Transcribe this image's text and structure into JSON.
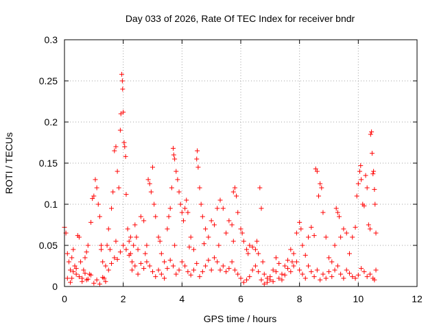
{
  "chart_data": {
    "type": "scatter",
    "title": "Day 033 of 2026, Rate Of TEC Index for receiver bndr",
    "xlabel": "GPS time / hours",
    "ylabel": "ROTI / TECUs",
    "xlim": [
      0,
      12
    ],
    "ylim": [
      0,
      0.3
    ],
    "x_ticks": [
      0,
      2,
      4,
      6,
      8,
      10,
      12
    ],
    "x_tick_labels": [
      "0",
      "2",
      "4",
      "6",
      "8",
      "10",
      "12"
    ],
    "y_ticks": [
      0,
      0.05,
      0.1,
      0.15,
      0.2,
      0.25,
      0.3
    ],
    "y_tick_labels": [
      "0",
      "0.05",
      "0.1",
      "0.15",
      "0.2",
      "0.25",
      "0.3"
    ],
    "grid": true,
    "marker": "plus",
    "color": "#ff0000",
    "series": [
      {
        "name": "ROTI",
        "points": [
          [
            0.0,
            0.072
          ],
          [
            0.05,
            0.065
          ],
          [
            0.1,
            0.04
          ],
          [
            0.15,
            0.03
          ],
          [
            0.2,
            0.02
          ],
          [
            0.25,
            0.01
          ],
          [
            0.3,
            0.045
          ],
          [
            0.35,
            0.025
          ],
          [
            0.4,
            0.015
          ],
          [
            0.45,
            0.062
          ],
          [
            0.5,
            0.06
          ],
          [
            0.55,
            0.03
          ],
          [
            0.6,
            0.01
          ],
          [
            0.65,
            0.02
          ],
          [
            0.7,
            0.035
          ],
          [
            0.75,
            0.008
          ],
          [
            0.8,
            0.05
          ],
          [
            0.85,
            0.015
          ],
          [
            0.9,
            0.078
          ],
          [
            0.95,
            0.107
          ],
          [
            1.0,
            0.11
          ],
          [
            1.05,
            0.13
          ],
          [
            1.1,
            0.12
          ],
          [
            1.15,
            0.1
          ],
          [
            1.2,
            0.085
          ],
          [
            1.25,
            0.05
          ],
          [
            1.3,
            0.03
          ],
          [
            1.35,
            0.01
          ],
          [
            1.4,
            0.025
          ],
          [
            1.45,
            0.05
          ],
          [
            1.5,
            0.07
          ],
          [
            1.55,
            0.045
          ],
          [
            1.6,
            0.095
          ],
          [
            1.65,
            0.115
          ],
          [
            1.7,
            0.165
          ],
          [
            1.75,
            0.17
          ],
          [
            1.8,
            0.14
          ],
          [
            1.85,
            0.12
          ],
          [
            1.9,
            0.19
          ],
          [
            1.92,
            0.21
          ],
          [
            1.95,
            0.258
          ],
          [
            1.97,
            0.25
          ],
          [
            1.98,
            0.24
          ],
          [
            2.0,
            0.212
          ],
          [
            2.03,
            0.175
          ],
          [
            2.05,
            0.17
          ],
          [
            2.08,
            0.158
          ],
          [
            2.1,
            0.112
          ],
          [
            2.15,
            0.07
          ],
          [
            2.2,
            0.055
          ],
          [
            2.25,
            0.04
          ],
          [
            2.3,
            0.03
          ],
          [
            2.35,
            0.05
          ],
          [
            2.4,
            0.075
          ],
          [
            2.45,
            0.06
          ],
          [
            2.5,
            0.045
          ],
          [
            2.6,
            0.085
          ],
          [
            2.7,
            0.08
          ],
          [
            2.8,
            0.05
          ],
          [
            2.85,
            0.13
          ],
          [
            2.9,
            0.125
          ],
          [
            2.95,
            0.115
          ],
          [
            3.0,
            0.145
          ],
          [
            3.05,
            0.1
          ],
          [
            3.1,
            0.085
          ],
          [
            3.2,
            0.06
          ],
          [
            3.3,
            0.04
          ],
          [
            3.4,
            0.03
          ],
          [
            3.5,
            0.07
          ],
          [
            3.55,
            0.085
          ],
          [
            3.6,
            0.095
          ],
          [
            3.65,
            0.12
          ],
          [
            3.7,
            0.168
          ],
          [
            3.72,
            0.16
          ],
          [
            3.75,
            0.155
          ],
          [
            3.8,
            0.14
          ],
          [
            3.85,
            0.13
          ],
          [
            3.9,
            0.115
          ],
          [
            3.95,
            0.1
          ],
          [
            4.0,
            0.09
          ],
          [
            4.05,
            0.08
          ],
          [
            4.1,
            0.095
          ],
          [
            4.15,
            0.105
          ],
          [
            4.2,
            0.09
          ],
          [
            4.3,
            0.06
          ],
          [
            4.4,
            0.045
          ],
          [
            4.5,
            0.155
          ],
          [
            4.52,
            0.165
          ],
          [
            4.55,
            0.145
          ],
          [
            4.6,
            0.12
          ],
          [
            4.65,
            0.1
          ],
          [
            4.7,
            0.085
          ],
          [
            4.8,
            0.07
          ],
          [
            4.9,
            0.06
          ],
          [
            5.0,
            0.08
          ],
          [
            5.1,
            0.075
          ],
          [
            5.2,
            0.095
          ],
          [
            5.3,
            0.105
          ],
          [
            5.4,
            0.095
          ],
          [
            5.5,
            0.065
          ],
          [
            5.6,
            0.08
          ],
          [
            5.7,
            0.075
          ],
          [
            5.75,
            0.115
          ],
          [
            5.8,
            0.12
          ],
          [
            5.85,
            0.11
          ],
          [
            5.9,
            0.09
          ],
          [
            6.0,
            0.07
          ],
          [
            6.05,
            0.065
          ],
          [
            6.1,
            0.055
          ],
          [
            6.2,
            0.045
          ],
          [
            6.3,
            0.05
          ],
          [
            6.4,
            0.048
          ],
          [
            6.5,
            0.045
          ],
          [
            6.55,
            0.055
          ],
          [
            6.6,
            0.04
          ],
          [
            6.65,
            0.12
          ],
          [
            6.7,
            0.095
          ],
          [
            6.75,
            0.03
          ],
          [
            6.8,
            0.015
          ],
          [
            6.9,
            0.01
          ],
          [
            7.0,
            0.008
          ],
          [
            7.1,
            0.02
          ],
          [
            7.2,
            0.035
          ],
          [
            7.3,
            0.028
          ],
          [
            7.4,
            0.015
          ],
          [
            7.5,
            0.025
          ],
          [
            7.6,
            0.032
          ],
          [
            7.7,
            0.045
          ],
          [
            7.8,
            0.04
          ],
          [
            7.9,
            0.065
          ],
          [
            8.0,
            0.078
          ],
          [
            8.05,
            0.07
          ],
          [
            8.1,
            0.05
          ],
          [
            8.2,
            0.038
          ],
          [
            8.3,
            0.06
          ],
          [
            8.4,
            0.072
          ],
          [
            8.5,
            0.062
          ],
          [
            8.55,
            0.143
          ],
          [
            8.6,
            0.14
          ],
          [
            8.65,
            0.11
          ],
          [
            8.7,
            0.125
          ],
          [
            8.75,
            0.12
          ],
          [
            8.8,
            0.09
          ],
          [
            8.9,
            0.06
          ],
          [
            9.0,
            0.035
          ],
          [
            9.1,
            0.03
          ],
          [
            9.2,
            0.05
          ],
          [
            9.25,
            0.095
          ],
          [
            9.3,
            0.09
          ],
          [
            9.35,
            0.085
          ],
          [
            9.4,
            0.06
          ],
          [
            9.5,
            0.07
          ],
          [
            9.6,
            0.065
          ],
          [
            9.7,
            0.04
          ],
          [
            9.8,
            0.06
          ],
          [
            9.9,
            0.072
          ],
          [
            9.95,
            0.11
          ],
          [
            10.0,
            0.125
          ],
          [
            10.05,
            0.14
          ],
          [
            10.08,
            0.147
          ],
          [
            10.1,
            0.13
          ],
          [
            10.15,
            0.1
          ],
          [
            10.2,
            0.098
          ],
          [
            10.25,
            0.135
          ],
          [
            10.3,
            0.12
          ],
          [
            10.35,
            0.075
          ],
          [
            10.4,
            0.07
          ],
          [
            10.42,
            0.185
          ],
          [
            10.45,
            0.188
          ],
          [
            10.47,
            0.162
          ],
          [
            10.5,
            0.137
          ],
          [
            10.52,
            0.14
          ],
          [
            10.55,
            0.118
          ],
          [
            10.57,
            0.1
          ],
          [
            10.6,
            0.065
          ],
          [
            10.6,
            0.02
          ],
          [
            0.1,
            0.01
          ],
          [
            0.2,
            0.005
          ],
          [
            0.3,
            0.018
          ],
          [
            0.4,
            0.022
          ],
          [
            0.5,
            0.012
          ],
          [
            0.6,
            0.006
          ],
          [
            0.7,
            0.016
          ],
          [
            0.8,
            0.009
          ],
          [
            0.9,
            0.014
          ],
          [
            1.0,
            0.004
          ],
          [
            1.1,
            0.008
          ],
          [
            1.2,
            0.003
          ],
          [
            1.3,
            0.011
          ],
          [
            1.4,
            0.006
          ],
          [
            1.5,
            0.02
          ],
          [
            1.6,
            0.028
          ],
          [
            1.7,
            0.035
          ],
          [
            1.8,
            0.033
          ],
          [
            1.9,
            0.042
          ],
          [
            2.0,
            0.05
          ],
          [
            2.1,
            0.045
          ],
          [
            2.2,
            0.038
          ],
          [
            2.3,
            0.02
          ],
          [
            2.4,
            0.025
          ],
          [
            2.5,
            0.015
          ],
          [
            2.6,
            0.028
          ],
          [
            2.7,
            0.022
          ],
          [
            2.8,
            0.03
          ],
          [
            2.9,
            0.025
          ],
          [
            3.0,
            0.018
          ],
          [
            3.1,
            0.012
          ],
          [
            3.2,
            0.02
          ],
          [
            3.3,
            0.015
          ],
          [
            3.4,
            0.01
          ],
          [
            3.5,
            0.022
          ],
          [
            3.6,
            0.032
          ],
          [
            3.7,
            0.025
          ],
          [
            3.8,
            0.015
          ],
          [
            3.9,
            0.02
          ],
          [
            4.0,
            0.03
          ],
          [
            4.1,
            0.025
          ],
          [
            4.2,
            0.018
          ],
          [
            4.3,
            0.014
          ],
          [
            4.4,
            0.02
          ],
          [
            4.5,
            0.028
          ],
          [
            4.6,
            0.012
          ],
          [
            4.7,
            0.018
          ],
          [
            4.8,
            0.025
          ],
          [
            4.9,
            0.032
          ],
          [
            5.0,
            0.02
          ],
          [
            5.1,
            0.035
          ],
          [
            5.2,
            0.03
          ],
          [
            5.3,
            0.02
          ],
          [
            5.4,
            0.025
          ],
          [
            5.5,
            0.018
          ],
          [
            5.6,
            0.022
          ],
          [
            5.7,
            0.03
          ],
          [
            5.8,
            0.02
          ],
          [
            5.9,
            0.015
          ],
          [
            6.0,
            0.01
          ],
          [
            6.1,
            0.005
          ],
          [
            6.2,
            0.008
          ],
          [
            6.3,
            0.012
          ],
          [
            6.4,
            0.02
          ],
          [
            6.5,
            0.025
          ],
          [
            6.6,
            0.018
          ],
          [
            6.7,
            0.008
          ],
          [
            6.8,
            0.003
          ],
          [
            6.9,
            0.005
          ],
          [
            7.0,
            0.012
          ],
          [
            7.1,
            0.006
          ],
          [
            7.2,
            0.018
          ],
          [
            7.3,
            0.01
          ],
          [
            7.4,
            0.008
          ],
          [
            7.5,
            0.014
          ],
          [
            7.6,
            0.022
          ],
          [
            7.7,
            0.018
          ],
          [
            7.8,
            0.025
          ],
          [
            7.9,
            0.03
          ],
          [
            8.0,
            0.02
          ],
          [
            8.1,
            0.015
          ],
          [
            8.2,
            0.01
          ],
          [
            8.3,
            0.025
          ],
          [
            8.4,
            0.018
          ],
          [
            8.5,
            0.012
          ],
          [
            8.6,
            0.02
          ],
          [
            8.7,
            0.008
          ],
          [
            8.8,
            0.015
          ],
          [
            8.9,
            0.01
          ],
          [
            9.0,
            0.018
          ],
          [
            9.1,
            0.012
          ],
          [
            9.2,
            0.02
          ],
          [
            9.3,
            0.025
          ],
          [
            9.4,
            0.015
          ],
          [
            9.5,
            0.01
          ],
          [
            9.6,
            0.02
          ],
          [
            9.7,
            0.016
          ],
          [
            9.8,
            0.012
          ],
          [
            9.9,
            0.01
          ],
          [
            10.0,
            0.014
          ],
          [
            10.1,
            0.022
          ],
          [
            10.2,
            0.018
          ],
          [
            10.3,
            0.012
          ],
          [
            10.4,
            0.015
          ],
          [
            10.5,
            0.01
          ],
          [
            10.55,
            0.008
          ],
          [
            0.25,
            0.035
          ],
          [
            0.75,
            0.042
          ],
          [
            1.25,
            0.045
          ],
          [
            1.75,
            0.055
          ],
          [
            2.25,
            0.06
          ],
          [
            2.75,
            0.04
          ],
          [
            3.25,
            0.055
          ],
          [
            3.75,
            0.05
          ],
          [
            4.25,
            0.048
          ],
          [
            4.75,
            0.052
          ],
          [
            5.25,
            0.05
          ],
          [
            5.75,
            0.055
          ],
          [
            6.25,
            0.04
          ],
          [
            7.75,
            0.03
          ]
        ]
      }
    ]
  }
}
